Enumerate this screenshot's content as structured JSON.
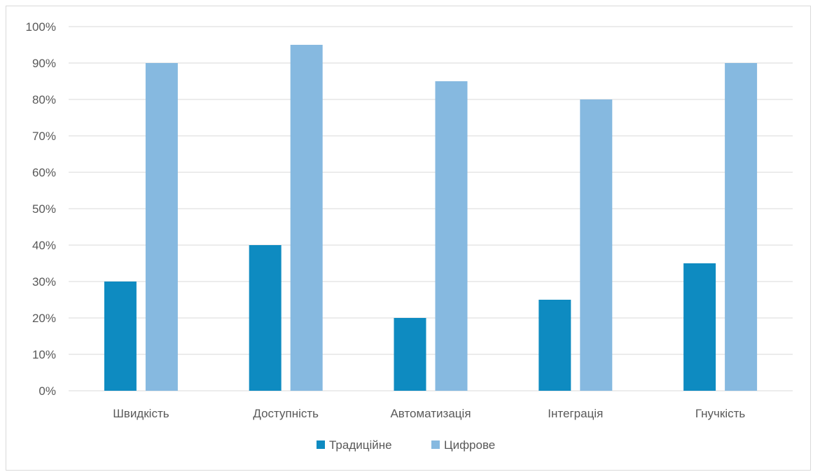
{
  "chart_data": {
    "type": "bar",
    "categories": [
      "Швидкість",
      "Доступність",
      "Автоматизація",
      "Інтеграція",
      "Гнучкість"
    ],
    "series": [
      {
        "name": "Традиційне",
        "values": [
          30,
          40,
          20,
          25,
          35
        ],
        "color": "#0e8bc1"
      },
      {
        "name": "Цифрове",
        "values": [
          90,
          95,
          85,
          80,
          90
        ],
        "color": "#86b9e0"
      }
    ],
    "y_ticks": [
      "0%",
      "10%",
      "20%",
      "30%",
      "40%",
      "50%",
      "60%",
      "70%",
      "80%",
      "90%",
      "100%"
    ],
    "ylim": [
      0,
      100
    ],
    "grid": true,
    "legend_position": "bottom",
    "title": "",
    "xlabel": "",
    "ylabel": ""
  }
}
